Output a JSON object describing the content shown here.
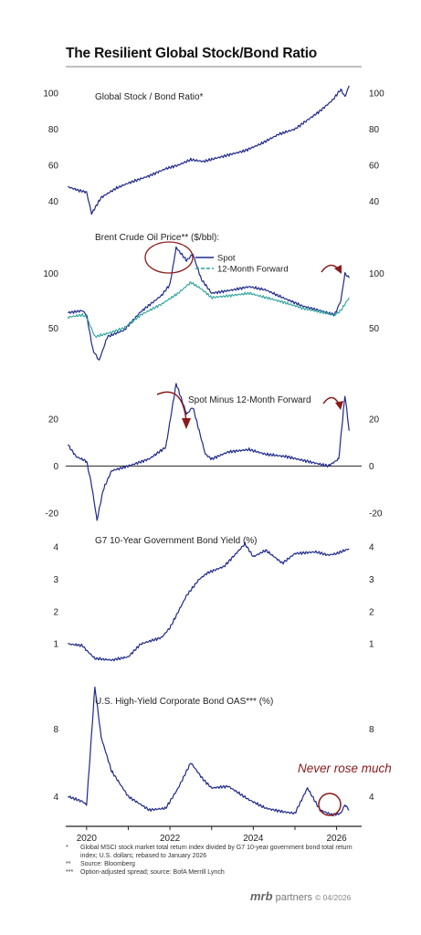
{
  "title": "The Resilient Global Stock/Bond Ratio",
  "colors": {
    "navy": "#1f2a8a",
    "teal": "#2ba39b",
    "annotation": "#8b1a1a",
    "axis": "#222222"
  },
  "annotation_text": "Never rose much",
  "x_ticks": [
    "2020",
    "2022",
    "2024",
    "2026"
  ],
  "notes": [
    {
      "mark": "*",
      "text": "Global MSCI stock market total return index divided by G7 10-year government bond total return index; U.S. dollars; rebased to January 2026"
    },
    {
      "mark": "**",
      "text": "Source: Bloomberg"
    },
    {
      "mark": "***",
      "text": "Option-adjusted spread; source: BofA Merrill Lynch"
    }
  ],
  "brand": {
    "name": "mrb",
    "partners": "partners",
    "stamp": "© 04/2026"
  },
  "chart_data": [
    {
      "type": "line",
      "title": "Global Stock / Bond Ratio*",
      "ylim": [
        30,
        105
      ],
      "y_ticks": [
        "40",
        "60",
        "80",
        "100"
      ],
      "series": [
        {
          "values": [
            [
              2019.55,
              48
            ],
            [
              2019.8,
              46
            ],
            [
              2020.0,
              45
            ],
            [
              2020.12,
              33
            ],
            [
              2020.35,
              42
            ],
            [
              2020.7,
              47
            ],
            [
              2021.0,
              50
            ],
            [
              2021.5,
              54
            ],
            [
              2021.9,
              58
            ],
            [
              2022.2,
              60
            ],
            [
              2022.5,
              63
            ],
            [
              2022.8,
              62
            ],
            [
              2023.3,
              65
            ],
            [
              2023.8,
              68
            ],
            [
              2024.2,
              72
            ],
            [
              2024.6,
              77
            ],
            [
              2025.0,
              80
            ],
            [
              2025.3,
              85
            ],
            [
              2025.6,
              90
            ],
            [
              2025.9,
              96
            ],
            [
              2026.1,
              102
            ],
            [
              2026.2,
              98
            ],
            [
              2026.3,
              104
            ]
          ]
        }
      ]
    },
    {
      "type": "line",
      "title": "Brent Crude Oil Price** ($/bbl):",
      "ylim": [
        20,
        140
      ],
      "y_ticks": [
        "50",
        "100"
      ],
      "series": [
        {
          "name": "Spot",
          "values": [
            [
              2019.55,
              64
            ],
            [
              2019.9,
              66
            ],
            [
              2020.0,
              62
            ],
            [
              2020.15,
              30
            ],
            [
              2020.3,
              20
            ],
            [
              2020.5,
              42
            ],
            [
              2020.9,
              48
            ],
            [
              2021.3,
              65
            ],
            [
              2021.8,
              80
            ],
            [
              2022.0,
              90
            ],
            [
              2022.15,
              124
            ],
            [
              2022.4,
              112
            ],
            [
              2022.55,
              118
            ],
            [
              2022.75,
              95
            ],
            [
              2023.0,
              82
            ],
            [
              2023.5,
              85
            ],
            [
              2023.9,
              88
            ],
            [
              2024.3,
              85
            ],
            [
              2024.7,
              78
            ],
            [
              2025.2,
              70
            ],
            [
              2025.7,
              65
            ],
            [
              2025.95,
              62
            ],
            [
              2026.1,
              75
            ],
            [
              2026.2,
              100
            ],
            [
              2026.3,
              96
            ]
          ]
        },
        {
          "name": "12-Month Forward",
          "values": [
            [
              2019.55,
              60
            ],
            [
              2019.9,
              62
            ],
            [
              2020.0,
              60
            ],
            [
              2020.2,
              42
            ],
            [
              2020.5,
              45
            ],
            [
              2020.9,
              50
            ],
            [
              2021.3,
              62
            ],
            [
              2021.8,
              72
            ],
            [
              2022.2,
              82
            ],
            [
              2022.5,
              92
            ],
            [
              2022.75,
              86
            ],
            [
              2023.0,
              78
            ],
            [
              2023.5,
              80
            ],
            [
              2023.9,
              82
            ],
            [
              2024.3,
              78
            ],
            [
              2024.7,
              74
            ],
            [
              2025.2,
              68
            ],
            [
              2025.7,
              64
            ],
            [
              2025.95,
              62
            ],
            [
              2026.1,
              66
            ],
            [
              2026.3,
              78
            ]
          ]
        }
      ]
    },
    {
      "type": "line",
      "title": "Spot Minus 12-Month Forward",
      "ylim": [
        -25,
        35
      ],
      "y_ticks": [
        "-20",
        "0",
        "20"
      ],
      "zero_line": true,
      "series": [
        {
          "values": [
            [
              2019.55,
              9
            ],
            [
              2019.75,
              4
            ],
            [
              2020.0,
              2
            ],
            [
              2020.12,
              -8
            ],
            [
              2020.25,
              -23
            ],
            [
              2020.4,
              -10
            ],
            [
              2020.6,
              -2
            ],
            [
              2021.0,
              0
            ],
            [
              2021.5,
              3
            ],
            [
              2021.9,
              8
            ],
            [
              2022.15,
              35
            ],
            [
              2022.4,
              22
            ],
            [
              2022.55,
              25
            ],
            [
              2022.7,
              15
            ],
            [
              2022.85,
              5
            ],
            [
              2023.0,
              3
            ],
            [
              2023.4,
              6
            ],
            [
              2023.9,
              7
            ],
            [
              2024.3,
              5
            ],
            [
              2024.8,
              4
            ],
            [
              2025.3,
              2
            ],
            [
              2025.8,
              0
            ],
            [
              2026.05,
              3
            ],
            [
              2026.2,
              30
            ],
            [
              2026.3,
              15
            ]
          ]
        }
      ]
    },
    {
      "type": "line",
      "title": "G7 10-Year Government Bond Yield (%)",
      "ylim": [
        0.3,
        4.4
      ],
      "y_ticks": [
        "1",
        "2",
        "3",
        "4"
      ],
      "series": [
        {
          "values": [
            [
              2019.55,
              1.0
            ],
            [
              2019.9,
              0.95
            ],
            [
              2020.0,
              0.8
            ],
            [
              2020.2,
              0.55
            ],
            [
              2020.6,
              0.5
            ],
            [
              2021.0,
              0.6
            ],
            [
              2021.3,
              1.0
            ],
            [
              2021.8,
              1.2
            ],
            [
              2022.0,
              1.5
            ],
            [
              2022.4,
              2.5
            ],
            [
              2022.7,
              3.0
            ],
            [
              2022.9,
              3.2
            ],
            [
              2023.3,
              3.4
            ],
            [
              2023.8,
              4.1
            ],
            [
              2024.0,
              3.7
            ],
            [
              2024.3,
              3.9
            ],
            [
              2024.7,
              3.5
            ],
            [
              2025.0,
              3.8
            ],
            [
              2025.5,
              3.85
            ],
            [
              2025.8,
              3.75
            ],
            [
              2026.0,
              3.8
            ],
            [
              2026.3,
              3.95
            ]
          ]
        }
      ]
    },
    {
      "type": "line",
      "title": "U.S. High-Yield Corporate Bond OAS*** (%)",
      "ylim": [
        2.5,
        10.5
      ],
      "y_ticks": [
        "4",
        "8"
      ],
      "series": [
        {
          "values": [
            [
              2019.55,
              4.0
            ],
            [
              2019.9,
              3.7
            ],
            [
              2020.0,
              3.5
            ],
            [
              2020.2,
              10.5
            ],
            [
              2020.35,
              7.5
            ],
            [
              2020.6,
              5.5
            ],
            [
              2021.0,
              4.0
            ],
            [
              2021.5,
              3.2
            ],
            [
              2021.9,
              3.3
            ],
            [
              2022.2,
              4.5
            ],
            [
              2022.5,
              6.0
            ],
            [
              2022.8,
              5.0
            ],
            [
              2023.0,
              4.5
            ],
            [
              2023.4,
              4.6
            ],
            [
              2023.9,
              3.8
            ],
            [
              2024.3,
              3.3
            ],
            [
              2024.7,
              3.1
            ],
            [
              2025.0,
              3.0
            ],
            [
              2025.3,
              4.5
            ],
            [
              2025.6,
              3.2
            ],
            [
              2025.9,
              2.9
            ],
            [
              2026.1,
              3.0
            ],
            [
              2026.2,
              3.5
            ],
            [
              2026.3,
              3.2
            ]
          ]
        }
      ]
    }
  ]
}
